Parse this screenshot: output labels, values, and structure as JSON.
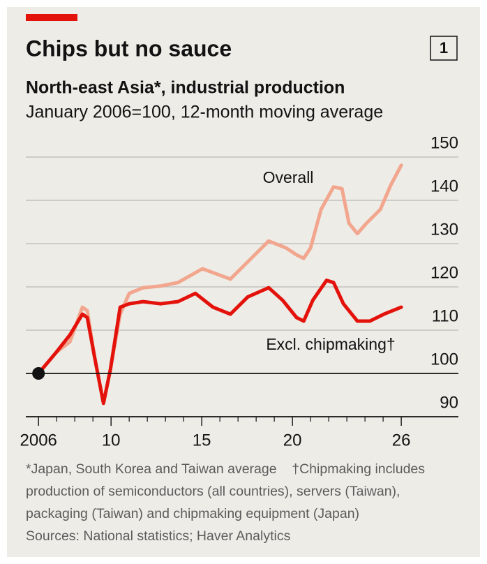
{
  "chart_data": {
    "type": "line",
    "chart_number": "1",
    "title": "Chips but no sauce",
    "subtitle": "North-east Asia*, industrial production",
    "description": "January 2006=100, 12-month moving average",
    "series": [
      {
        "name": "Overall",
        "color": "#f2a68e",
        "x": [
          2006.0,
          2006.96,
          2007.73,
          2008.42,
          2008.69,
          2009.08,
          2009.58,
          2009.96,
          2010.5,
          2011.0,
          2011.77,
          2012.73,
          2013.69,
          2015.04,
          2016.58,
          2017.73,
          2018.69,
          2019.65,
          2020.23,
          2020.62,
          2021.0,
          2021.58,
          2022.27,
          2022.73,
          2023.12,
          2023.58,
          2024.08,
          2024.85,
          2025.42,
          2026.0
        ],
        "values": [
          100,
          104.8,
          107.3,
          115.3,
          114.5,
          104.0,
          93.1,
          100.8,
          113.7,
          118.5,
          119.8,
          120.2,
          121.0,
          124.2,
          121.8,
          126.6,
          130.6,
          129.0,
          127.4,
          126.6,
          129.0,
          137.9,
          143.1,
          142.7,
          134.7,
          132.3,
          134.7,
          137.9,
          143.5,
          148.1
        ]
      },
      {
        "name": "Excl. chipmaking†",
        "color": "#e3120b",
        "x": [
          2006.0,
          2006.96,
          2007.73,
          2008.42,
          2008.69,
          2009.08,
          2009.58,
          2009.96,
          2010.5,
          2011.0,
          2011.77,
          2012.73,
          2013.69,
          2014.65,
          2015.62,
          2016.58,
          2017.54,
          2018.69,
          2019.46,
          2020.23,
          2020.62,
          2021.12,
          2021.88,
          2022.27,
          2022.81,
          2023.58,
          2024.27,
          2025.04,
          2026.0
        ],
        "values": [
          100,
          104.8,
          108.9,
          113.7,
          112.9,
          104.0,
          93.1,
          100.8,
          115.3,
          116.1,
          116.6,
          116.1,
          116.6,
          118.5,
          115.3,
          113.7,
          117.7,
          119.8,
          116.9,
          112.9,
          112.1,
          116.9,
          121.5,
          121.0,
          116.1,
          112.1,
          112.1,
          113.7,
          115.3
        ]
      }
    ],
    "xlim": [
      2005.3,
      2029.15
    ],
    "xticks": [
      2006,
      {
        "value": 2010,
        "label": "10"
      },
      {
        "value": 2015,
        "label": "15"
      },
      {
        "value": 2020,
        "label": "20"
      },
      {
        "value": 2026,
        "label": "26"
      }
    ],
    "xminor_ticks": [
      2007,
      2008,
      2009,
      2011,
      2012,
      2013,
      2014,
      2016,
      2017,
      2018,
      2019,
      2021,
      2022,
      2023,
      2024,
      2025
    ],
    "ylim": [
      90,
      150
    ],
    "yticks": [
      90,
      100,
      110,
      120,
      130,
      140,
      150
    ],
    "baseline": 100,
    "grid": true,
    "note": "*Japan, South Korea and Taiwan average",
    "note2": "†Chipmaking includes production of semiconductors (all countries), servers (Taiwan), packaging (Taiwan) and chipmaking equipment (Japan)",
    "source": "Sources: National statistics; Haver Analytics"
  }
}
